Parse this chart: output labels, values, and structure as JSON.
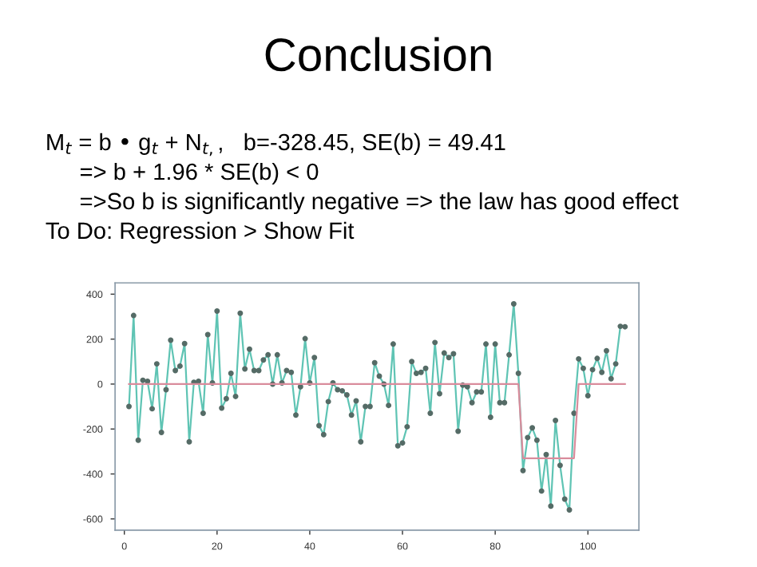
{
  "chart_data": {
    "type": "line",
    "title": "Conclusion",
    "annotations": [
      "M$_{t}$ = b • g$_{t}$ + N$_{t,}$,   b=-328.45, SE(b) = 49.41",
      "=> b + 1.96 * SE(b) < 0",
      "=>So b is significantly negative => the law has good effect",
      "To Do: Regression > Show Fit"
    ],
    "series": [
      {
        "color": "#5fc4b4",
        "marker": "circle",
        "x": [
          1,
          2,
          3,
          4,
          5,
          6,
          7,
          8,
          9,
          10,
          11,
          12,
          13,
          14,
          15,
          16,
          17,
          18,
          19,
          20,
          21,
          22,
          23,
          24,
          25,
          26,
          27,
          28,
          29,
          30,
          31,
          32,
          33,
          34,
          35,
          36,
          37,
          38,
          39,
          40,
          41,
          42,
          43,
          44,
          45,
          46,
          47,
          48,
          49,
          50,
          51,
          52,
          53,
          54,
          55,
          56,
          57,
          58,
          59,
          60,
          61,
          62,
          63,
          64,
          65,
          66,
          67,
          68,
          69,
          70,
          71,
          72,
          73,
          74,
          75,
          76,
          77,
          78,
          79,
          80,
          81,
          82,
          83,
          84,
          85,
          86,
          87,
          88,
          89,
          90,
          91,
          92,
          93,
          94,
          95,
          96,
          97,
          98,
          99,
          100,
          101,
          102,
          103,
          104,
          105,
          106,
          107,
          108
        ],
        "values": [
          -100,
          305,
          -250,
          17,
          12,
          -110,
          90,
          -215,
          -25,
          195,
          60,
          80,
          180,
          -257,
          8,
          12,
          -130,
          220,
          5,
          325,
          -107,
          -65,
          48,
          -55,
          315,
          67,
          155,
          60,
          60,
          107,
          130,
          0,
          130,
          5,
          60,
          52,
          -138,
          -12,
          202,
          5,
          118,
          -185,
          -225,
          -78,
          5,
          -25,
          -30,
          -48,
          -138,
          -75,
          -257,
          -100,
          -100,
          95,
          35,
          0,
          -95,
          178,
          -275,
          -262,
          -190,
          100,
          48,
          52,
          70,
          -130,
          185,
          -43,
          138,
          118,
          135,
          -210,
          -5,
          -12,
          -83,
          -35,
          -35,
          178,
          -148,
          178,
          -83,
          -83,
          130,
          357,
          48,
          -385,
          -238,
          -195,
          -250,
          -476,
          -314,
          -543,
          -162,
          -362,
          -512,
          -560,
          -130,
          112,
          70,
          -52,
          64,
          114,
          52,
          148,
          24,
          90,
          257,
          255
        ]
      },
      {
        "color": "#d98c9c",
        "marker": "none",
        "x": [
          1,
          85,
          86,
          97,
          98,
          108
        ],
        "values": [
          0,
          0,
          -330,
          -330,
          0,
          0
        ]
      }
    ],
    "xlim": [
      -2,
      111
    ],
    "ylim": [
      -650,
      450
    ],
    "xticks": [
      0,
      20,
      40,
      60,
      80,
      100
    ],
    "yticks": [
      -600,
      -400,
      -200,
      0,
      200,
      400
    ],
    "grid": false,
    "legend": false,
    "line_style": "solid"
  }
}
